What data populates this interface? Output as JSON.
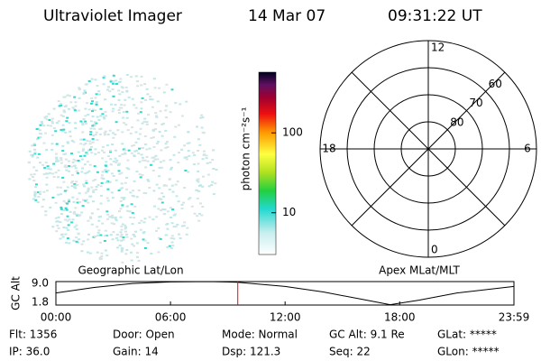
{
  "header": {
    "title": "Ultraviolet Imager",
    "date": "14 Mar 07",
    "time": "09:31:22 UT"
  },
  "colorbar": {
    "label": "photon cm⁻²s⁻¹",
    "log_scale": true,
    "ylim": [
      3,
      575
    ],
    "yticks": [
      10,
      100
    ]
  },
  "polar": {
    "rlim": [
      90,
      50
    ],
    "rings": [
      80,
      70,
      60
    ],
    "mlt_labels": [
      12,
      6,
      0,
      18
    ]
  },
  "chart_data": {
    "type": "line",
    "left_label": "Geographic Lat/Lon",
    "right_label": "Apex MLat/MLT",
    "ylabel": "GC Alt",
    "x": [
      0,
      2,
      4,
      6,
      8,
      9.5,
      12,
      14,
      16,
      17.5,
      19,
      21,
      23.98
    ],
    "series": [
      {
        "name": "GC Alt",
        "color": "#000000",
        "values": [
          5.5,
          7.2,
          8.4,
          8.9,
          9.0,
          8.8,
          7.5,
          5.8,
          3.6,
          1.9,
          3.3,
          5.5,
          7.5
        ]
      }
    ],
    "current_time": 9.523,
    "marker_color": "#ff0000",
    "xlim": [
      0,
      23.983
    ],
    "xticks": [
      {
        "value": 0,
        "label": "00:00"
      },
      {
        "value": 6,
        "label": "06:00"
      },
      {
        "value": 12,
        "label": "12:00"
      },
      {
        "value": 18,
        "label": "18:00"
      },
      {
        "value": 23.983,
        "label": "23:59"
      }
    ],
    "ylim": [
      1.8,
      9.0
    ],
    "yticks": [
      {
        "value": 9.0,
        "label": "9.0"
      },
      1.8
    ]
  },
  "status": {
    "rows": [
      [
        "Flt: 1356",
        "Door: Open",
        "Mode: Normal",
        "GC Alt: 9.1 Re",
        "GLat: *****"
      ],
      [
        "IP: 36.0",
        "Gain: 14",
        "Dsp: 121.3",
        "Seq: 22",
        "GLon: *****"
      ]
    ]
  }
}
